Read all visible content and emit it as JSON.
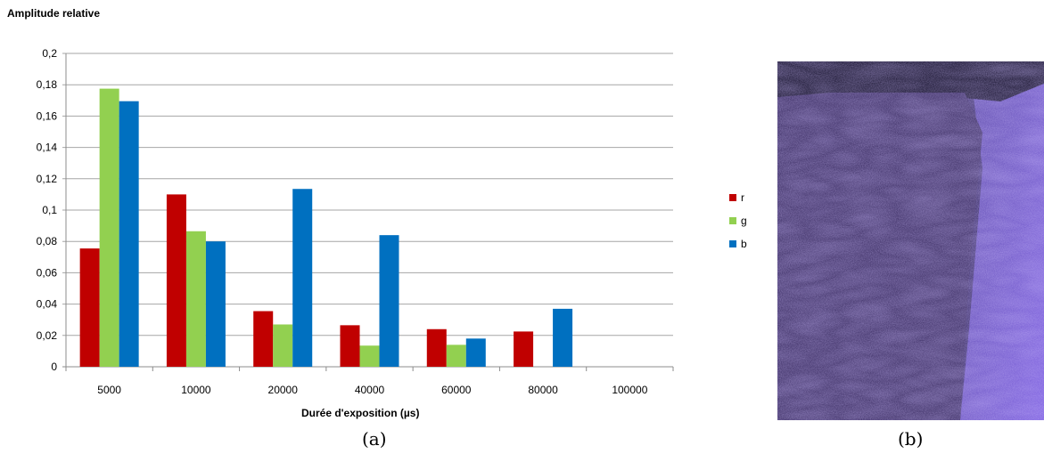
{
  "chart_data": {
    "type": "bar",
    "title": "",
    "ylabel": "Amplitude relative",
    "xlabel": "Durée d'exposition (µs)",
    "categories": [
      "5000",
      "10000",
      "20000",
      "40000",
      "60000",
      "80000",
      "100000"
    ],
    "series": [
      {
        "name": "r",
        "color": "#c00000",
        "values": [
          0.0755,
          0.11,
          0.0355,
          0.0265,
          0.024,
          0.0225,
          null
        ]
      },
      {
        "name": "g",
        "color": "#92d050",
        "values": [
          0.1775,
          0.0865,
          0.027,
          0.0135,
          0.014,
          null,
          null
        ]
      },
      {
        "name": "b",
        "color": "#0070c0",
        "values": [
          0.1695,
          0.08,
          0.1135,
          0.084,
          0.018,
          0.037,
          null
        ]
      }
    ],
    "ylim": [
      0,
      0.2
    ],
    "yticks": [
      "0",
      "0,02",
      "0,04",
      "0,06",
      "0,08",
      "0,1",
      "0,12",
      "0,14",
      "0,16",
      "0,18",
      "0,2"
    ],
    "grid": true,
    "legend_position": "right"
  },
  "captions": {
    "left": "(a)",
    "right": "(b)"
  },
  "photo": {
    "icon": "purple-tinted-photo-of-draped-cloth"
  }
}
